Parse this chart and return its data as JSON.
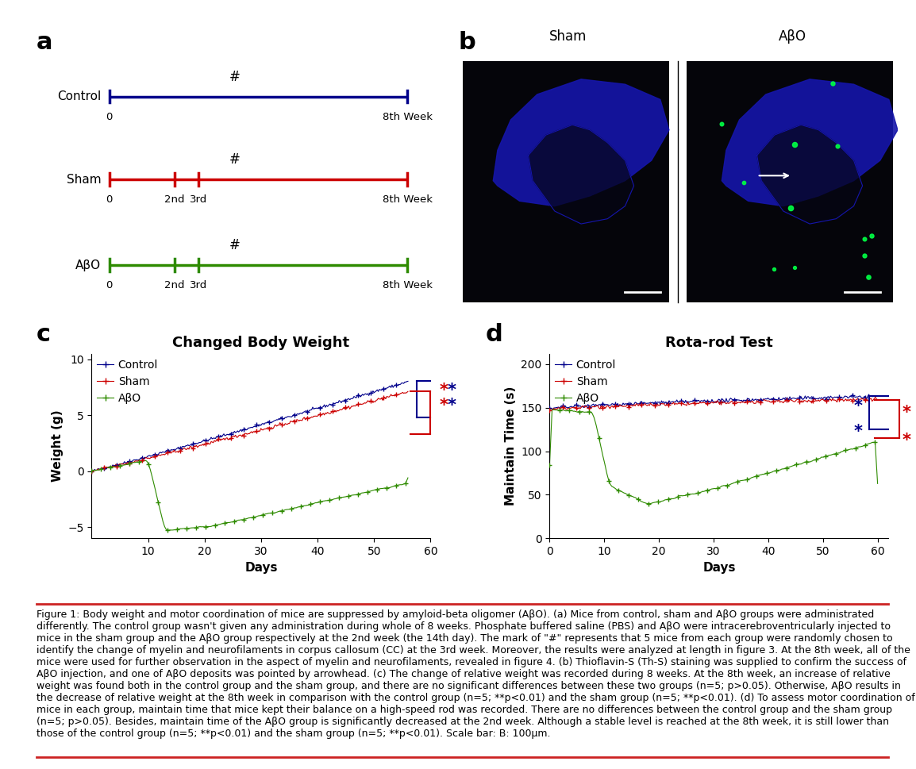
{
  "panel_a_label": "a",
  "panel_b_label": "b",
  "panel_c_label": "c",
  "panel_d_label": "d",
  "timeline": [
    {
      "name": "Control",
      "color": "#00008B",
      "ticks": [],
      "tick_labels": []
    },
    {
      "name": "Sham",
      "color": "#CC0000",
      "ticks": [
        0.22,
        0.3
      ],
      "tick_labels": [
        "2nd",
        "3rd"
      ]
    },
    {
      "name": "AβO",
      "color": "#2E8B00",
      "ticks": [
        0.22,
        0.3
      ],
      "tick_labels": [
        "2nd",
        "3rd"
      ]
    }
  ],
  "panel_c": {
    "title": "Changed Body Weight",
    "xlabel": "Days",
    "ylabel": "Weight (g)",
    "xlim": [
      0,
      60
    ],
    "ylim": [
      -6,
      10.5
    ],
    "yticks": [
      -5,
      0,
      5,
      10
    ],
    "xticks": [
      10,
      20,
      30,
      40,
      50,
      60
    ],
    "colors": [
      "#00008B",
      "#CC0000",
      "#2E8B00"
    ],
    "legend": [
      "Control",
      "Sham",
      "AβO"
    ]
  },
  "panel_d": {
    "title": "Rota-rod Test",
    "xlabel": "Days",
    "ylabel": "Maintain Time (s)",
    "xlim": [
      0,
      62
    ],
    "ylim": [
      0,
      212
    ],
    "yticks": [
      0,
      50,
      100,
      150,
      200
    ],
    "xticks": [
      0,
      10,
      20,
      30,
      40,
      50,
      60
    ],
    "colors": [
      "#00008B",
      "#CC0000",
      "#2E8B00"
    ],
    "legend": [
      "Control",
      "Sham",
      "AβO"
    ]
  },
  "figure_label_fontsize": 22,
  "axis_label_fontsize": 11,
  "title_fontsize": 13,
  "tick_fontsize": 10,
  "legend_fontsize": 10,
  "caption_fontsize": 9,
  "background_color": "#FFFFFF",
  "caption_bold": "Figure 1:",
  "caption_text": " Body weight and motor coordination of mice are suppressed by amyloid-beta oligomer (AβO). (a) Mice from control, sham and AβO groups were administrated differently. The control group wasn't given any administration during whole of 8 weeks. Phosphate buffered saline (PBS) and AβO were intracerebroventricularly injected to mice in the sham group and the AβO group respectively at the 2nd week (the 14th day). The mark of \"#\" represents that 5 mice from each group were randomly chosen to identify the change of myelin and neurofilaments in corpus callosum (CC) at the 3rd week. Moreover, the results were analyzed at length in figure 3. At the 8th week, all of the mice were used for further observation in the aspect of myelin and neurofilaments, revealed in figure 4. (b) Thioflavin-S (Th-S) staining was supplied to confirm the success of AβO injection, and one of AβO deposits was pointed by arrowhead. (c) The change of relative weight was recorded during 8 weeks. At the 8th week, an increase of relative weight was found both in the control group and the sham group, and there are no significant differences between these two groups (n=5; p>0.05). Otherwise, AβO results in the decrease of relative weight at the 8th week in comparison with the control group (n=5; **p<0.01) and the sham group (n=5; **p<0.01). (d) To assess motor coordination of mice in each group, maintain time that mice kept their balance on a high-speed rod was recorded. There are no differences between the control group and the sham group (n=5; p>0.05). Besides, maintain time of the AβO group is significantly decreased at the 2nd week. Although a stable level is reached at the 8th week, it is still lower than those of the control group (n=5; **p<0.01) and the sham group (n=5; **p<0.01). Scale bar: B: 100μm."
}
